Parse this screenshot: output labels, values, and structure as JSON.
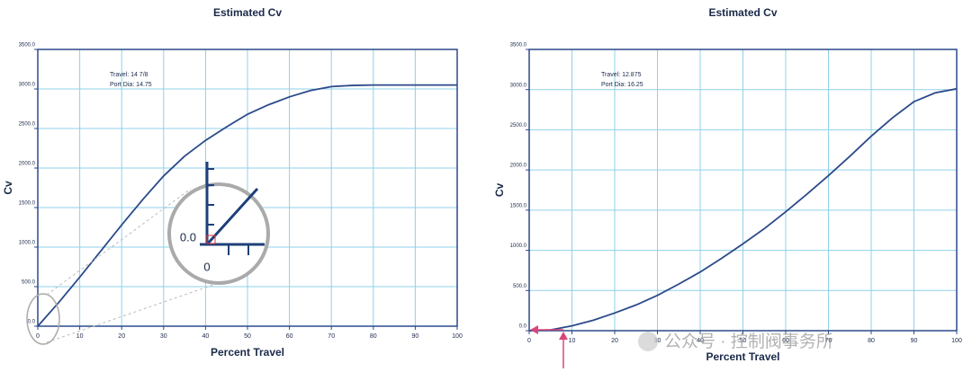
{
  "chart_data": [
    {
      "type": "line",
      "title": "Estimated Cv",
      "x_label": "Percent Travel",
      "y_label": "Cv",
      "annotations": [
        "Travel: 14 7/8",
        "Port Dia: 14.75"
      ],
      "inset_labels": [
        "0.0",
        "0"
      ],
      "color": "#2b4a8a",
      "grid": true,
      "x": [
        0,
        5,
        10,
        15,
        20,
        25,
        30,
        35,
        40,
        45,
        50,
        55,
        60,
        65,
        70,
        75,
        80,
        85,
        90,
        95,
        100
      ],
      "values": [
        0,
        300,
        620,
        950,
        1280,
        1600,
        1900,
        2150,
        2350,
        2520,
        2680,
        2800,
        2900,
        2980,
        3030,
        3045,
        3050,
        3050,
        3050,
        3050,
        3050
      ],
      "xlim": [
        0,
        100
      ],
      "xticks": [
        0,
        10,
        20,
        30,
        40,
        50,
        60,
        70,
        80,
        90,
        100
      ],
      "ylim": [
        0,
        3500
      ],
      "yticks": [
        {
          "value": 0,
          "label": "0.0"
        },
        {
          "value": 500,
          "label": "500.0"
        },
        {
          "value": 1000,
          "label": "1000.0"
        },
        {
          "value": 1500,
          "label": "1500.0"
        },
        {
          "value": 2000,
          "label": "2000.0"
        },
        {
          "value": 2500,
          "label": "2500.0"
        },
        {
          "value": 3000,
          "label": "3000.0"
        },
        {
          "value": 3500,
          "label": "3500.0"
        }
      ]
    },
    {
      "type": "line",
      "title": "Estimated Cv",
      "x_label": "Percent Travel",
      "y_label": "Cv",
      "annotations": [
        "Travel: 12.875",
        "Port Dia: 16.25"
      ],
      "color": "#2b4a8a",
      "grid": true,
      "x": [
        0,
        5,
        10,
        15,
        20,
        25,
        30,
        35,
        40,
        45,
        50,
        55,
        60,
        65,
        70,
        75,
        80,
        85,
        90,
        95,
        100
      ],
      "values": [
        0,
        10,
        60,
        130,
        220,
        320,
        440,
        580,
        730,
        900,
        1080,
        1270,
        1480,
        1700,
        1930,
        2170,
        2420,
        2650,
        2850,
        2960,
        3010
      ],
      "xlim": [
        0,
        100
      ],
      "xticks": [
        0,
        10,
        20,
        30,
        40,
        50,
        60,
        70,
        80,
        90,
        100
      ],
      "ylim": [
        0,
        3500
      ],
      "yticks": [
        {
          "value": 0,
          "label": "0.0"
        },
        {
          "value": 500,
          "label": "500.0"
        },
        {
          "value": 1000,
          "label": "1000.0"
        },
        {
          "value": 1500,
          "label": "1500.0"
        },
        {
          "value": 2000,
          "label": "2000.0"
        },
        {
          "value": 2500,
          "label": "2500.0"
        },
        {
          "value": 3000,
          "label": "3000.0"
        },
        {
          "value": 3500,
          "label": "3500.0"
        }
      ]
    }
  ],
  "watermark": "公众号 · 控制阀事务所"
}
